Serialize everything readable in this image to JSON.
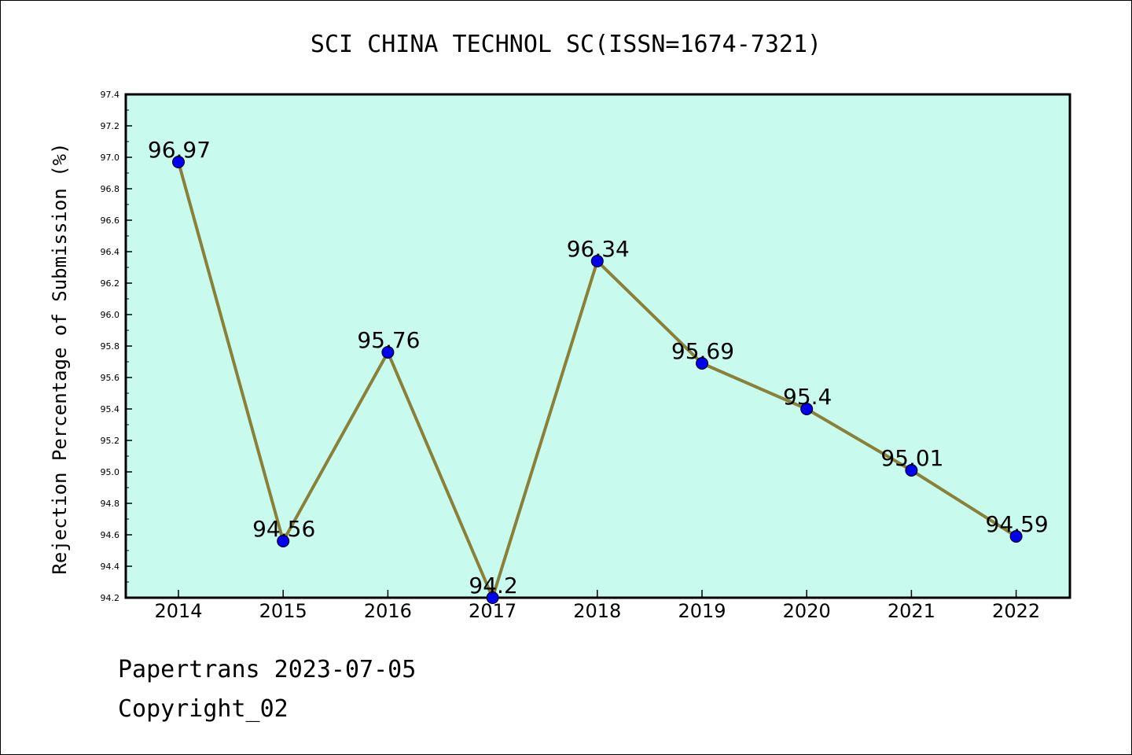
{
  "chart_data": {
    "type": "line",
    "title": "SCI CHINA TECHNOL SC(ISSN=1674-7321)",
    "xlabel": "",
    "ylabel": "Rejection Percentage of Submission (%)",
    "categories": [
      "2014",
      "2015",
      "2016",
      "2017",
      "2018",
      "2019",
      "2020",
      "2021",
      "2022"
    ],
    "series": [
      {
        "values": [
          96.97,
          94.56,
          95.76,
          94.2,
          96.34,
          95.69,
          95.4,
          95.01,
          94.59
        ]
      }
    ],
    "data_labels": [
      "96.97",
      "94.56",
      "95.76",
      "94.2",
      "96.34",
      "95.69",
      "95.4",
      "95.01",
      "94.59"
    ],
    "ylim": [
      94.2,
      97.4
    ],
    "yticks": [
      "94.2",
      "94.4",
      "94.6",
      "94.8",
      "95.0",
      "95.2",
      "95.4",
      "95.6",
      "95.8",
      "96.0",
      "96.2",
      "96.4",
      "96.6",
      "96.8",
      "97.0",
      "97.2",
      "97.4"
    ],
    "grid": false,
    "legend": "none",
    "colors": {
      "plot_background": "#c8fbee",
      "line": "#8b8038",
      "marker": "#0000ee"
    }
  },
  "footer": {
    "line1": "Papertrans 2023-07-05",
    "line2": "Copyright_02"
  }
}
